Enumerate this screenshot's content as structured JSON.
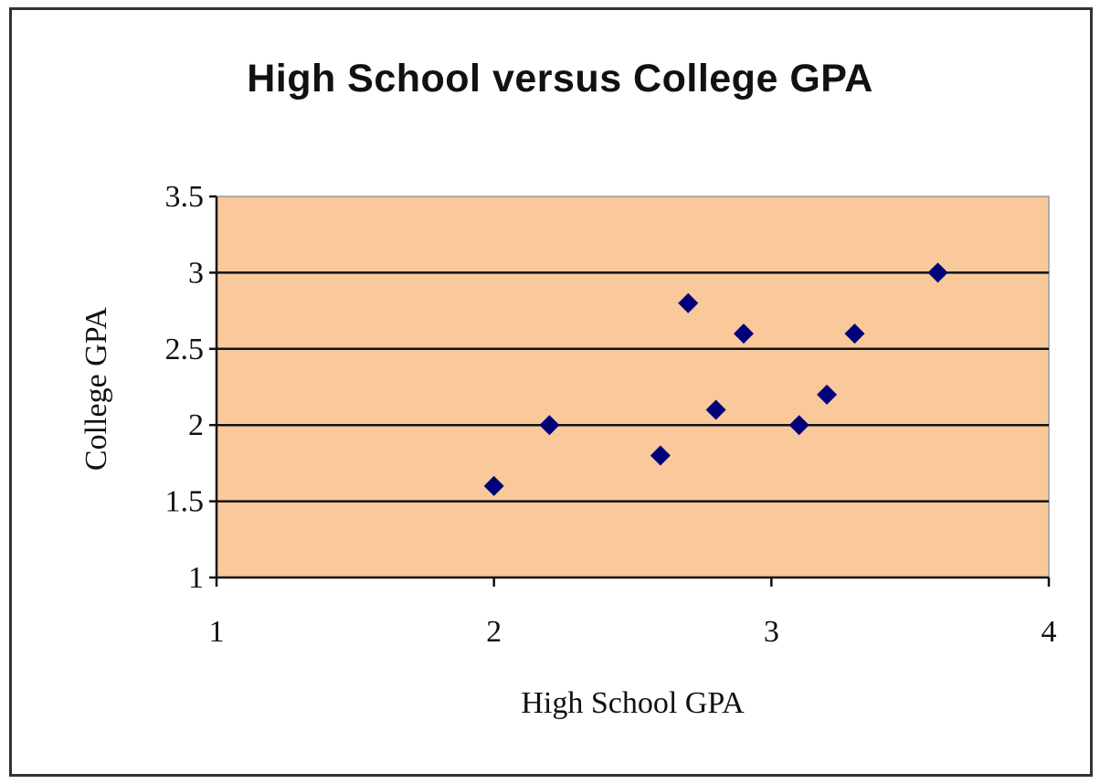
{
  "chart_data": {
    "type": "scatter",
    "title": "High School versus College GPA",
    "xlabel": "High School GPA",
    "ylabel": "College GPA",
    "xlim": [
      1,
      4
    ],
    "ylim": [
      1,
      3.5
    ],
    "xticks": [
      "1",
      "2",
      "3",
      "4"
    ],
    "yticks": [
      "1",
      "1.5",
      "2",
      "2.5",
      "3",
      "3.5"
    ],
    "xtick_values": [
      1,
      2,
      3,
      4
    ],
    "ytick_values": [
      1,
      1.5,
      2,
      2.5,
      3,
      3.5
    ],
    "grid": "horizontal",
    "legend": "none",
    "plot_background": "#F9C89B",
    "gridline_color": "#111111",
    "marker": "diamond",
    "marker_color": "#00007A",
    "points": [
      {
        "x": 2.0,
        "y": 1.6
      },
      {
        "x": 2.2,
        "y": 2.0
      },
      {
        "x": 2.6,
        "y": 1.8
      },
      {
        "x": 2.7,
        "y": 2.8
      },
      {
        "x": 2.8,
        "y": 2.1
      },
      {
        "x": 2.9,
        "y": 2.6
      },
      {
        "x": 3.1,
        "y": 2.0
      },
      {
        "x": 3.2,
        "y": 2.2
      },
      {
        "x": 3.3,
        "y": 2.6
      },
      {
        "x": 3.6,
        "y": 3.0
      }
    ]
  }
}
